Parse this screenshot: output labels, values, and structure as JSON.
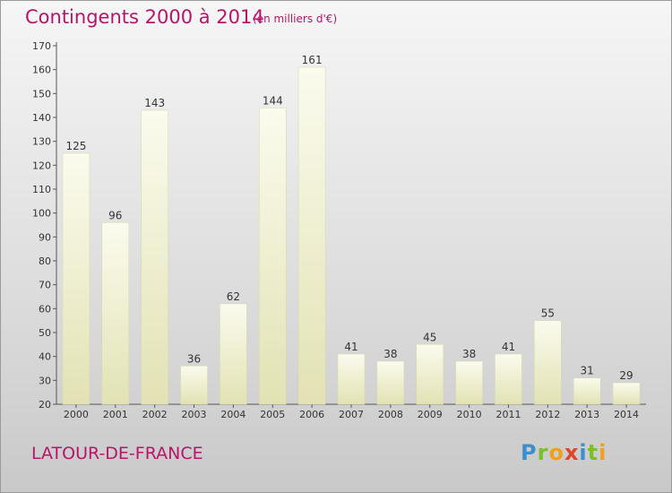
{
  "header": {
    "title": "Contingents 2000 à 2014",
    "subtitle": "(en milliers d'€)"
  },
  "footer": {
    "commune": "LATOUR-DE-FRANCE",
    "logo": "Proxiti"
  },
  "chart_data": {
    "type": "bar",
    "title": "Contingents 2000 à 2014",
    "subtitle": "(en milliers d'€)",
    "xlabel": "",
    "ylabel": "",
    "categories": [
      "2000",
      "2001",
      "2002",
      "2003",
      "2004",
      "2005",
      "2006",
      "2007",
      "2008",
      "2009",
      "2010",
      "2011",
      "2012",
      "2013",
      "2014"
    ],
    "values": [
      125,
      96,
      143,
      36,
      62,
      144,
      161,
      41,
      38,
      45,
      38,
      41,
      55,
      31,
      29
    ],
    "ylim": [
      20,
      170
    ],
    "yticks": [
      20,
      30,
      40,
      50,
      60,
      70,
      80,
      90,
      100,
      110,
      120,
      130,
      140,
      150,
      160,
      170
    ],
    "grid": false,
    "legend": "none",
    "colors": {
      "bar_top": "#f7f7e4",
      "bar_bottom": "#e4e4b6",
      "text_accent": "#b5166a"
    }
  }
}
